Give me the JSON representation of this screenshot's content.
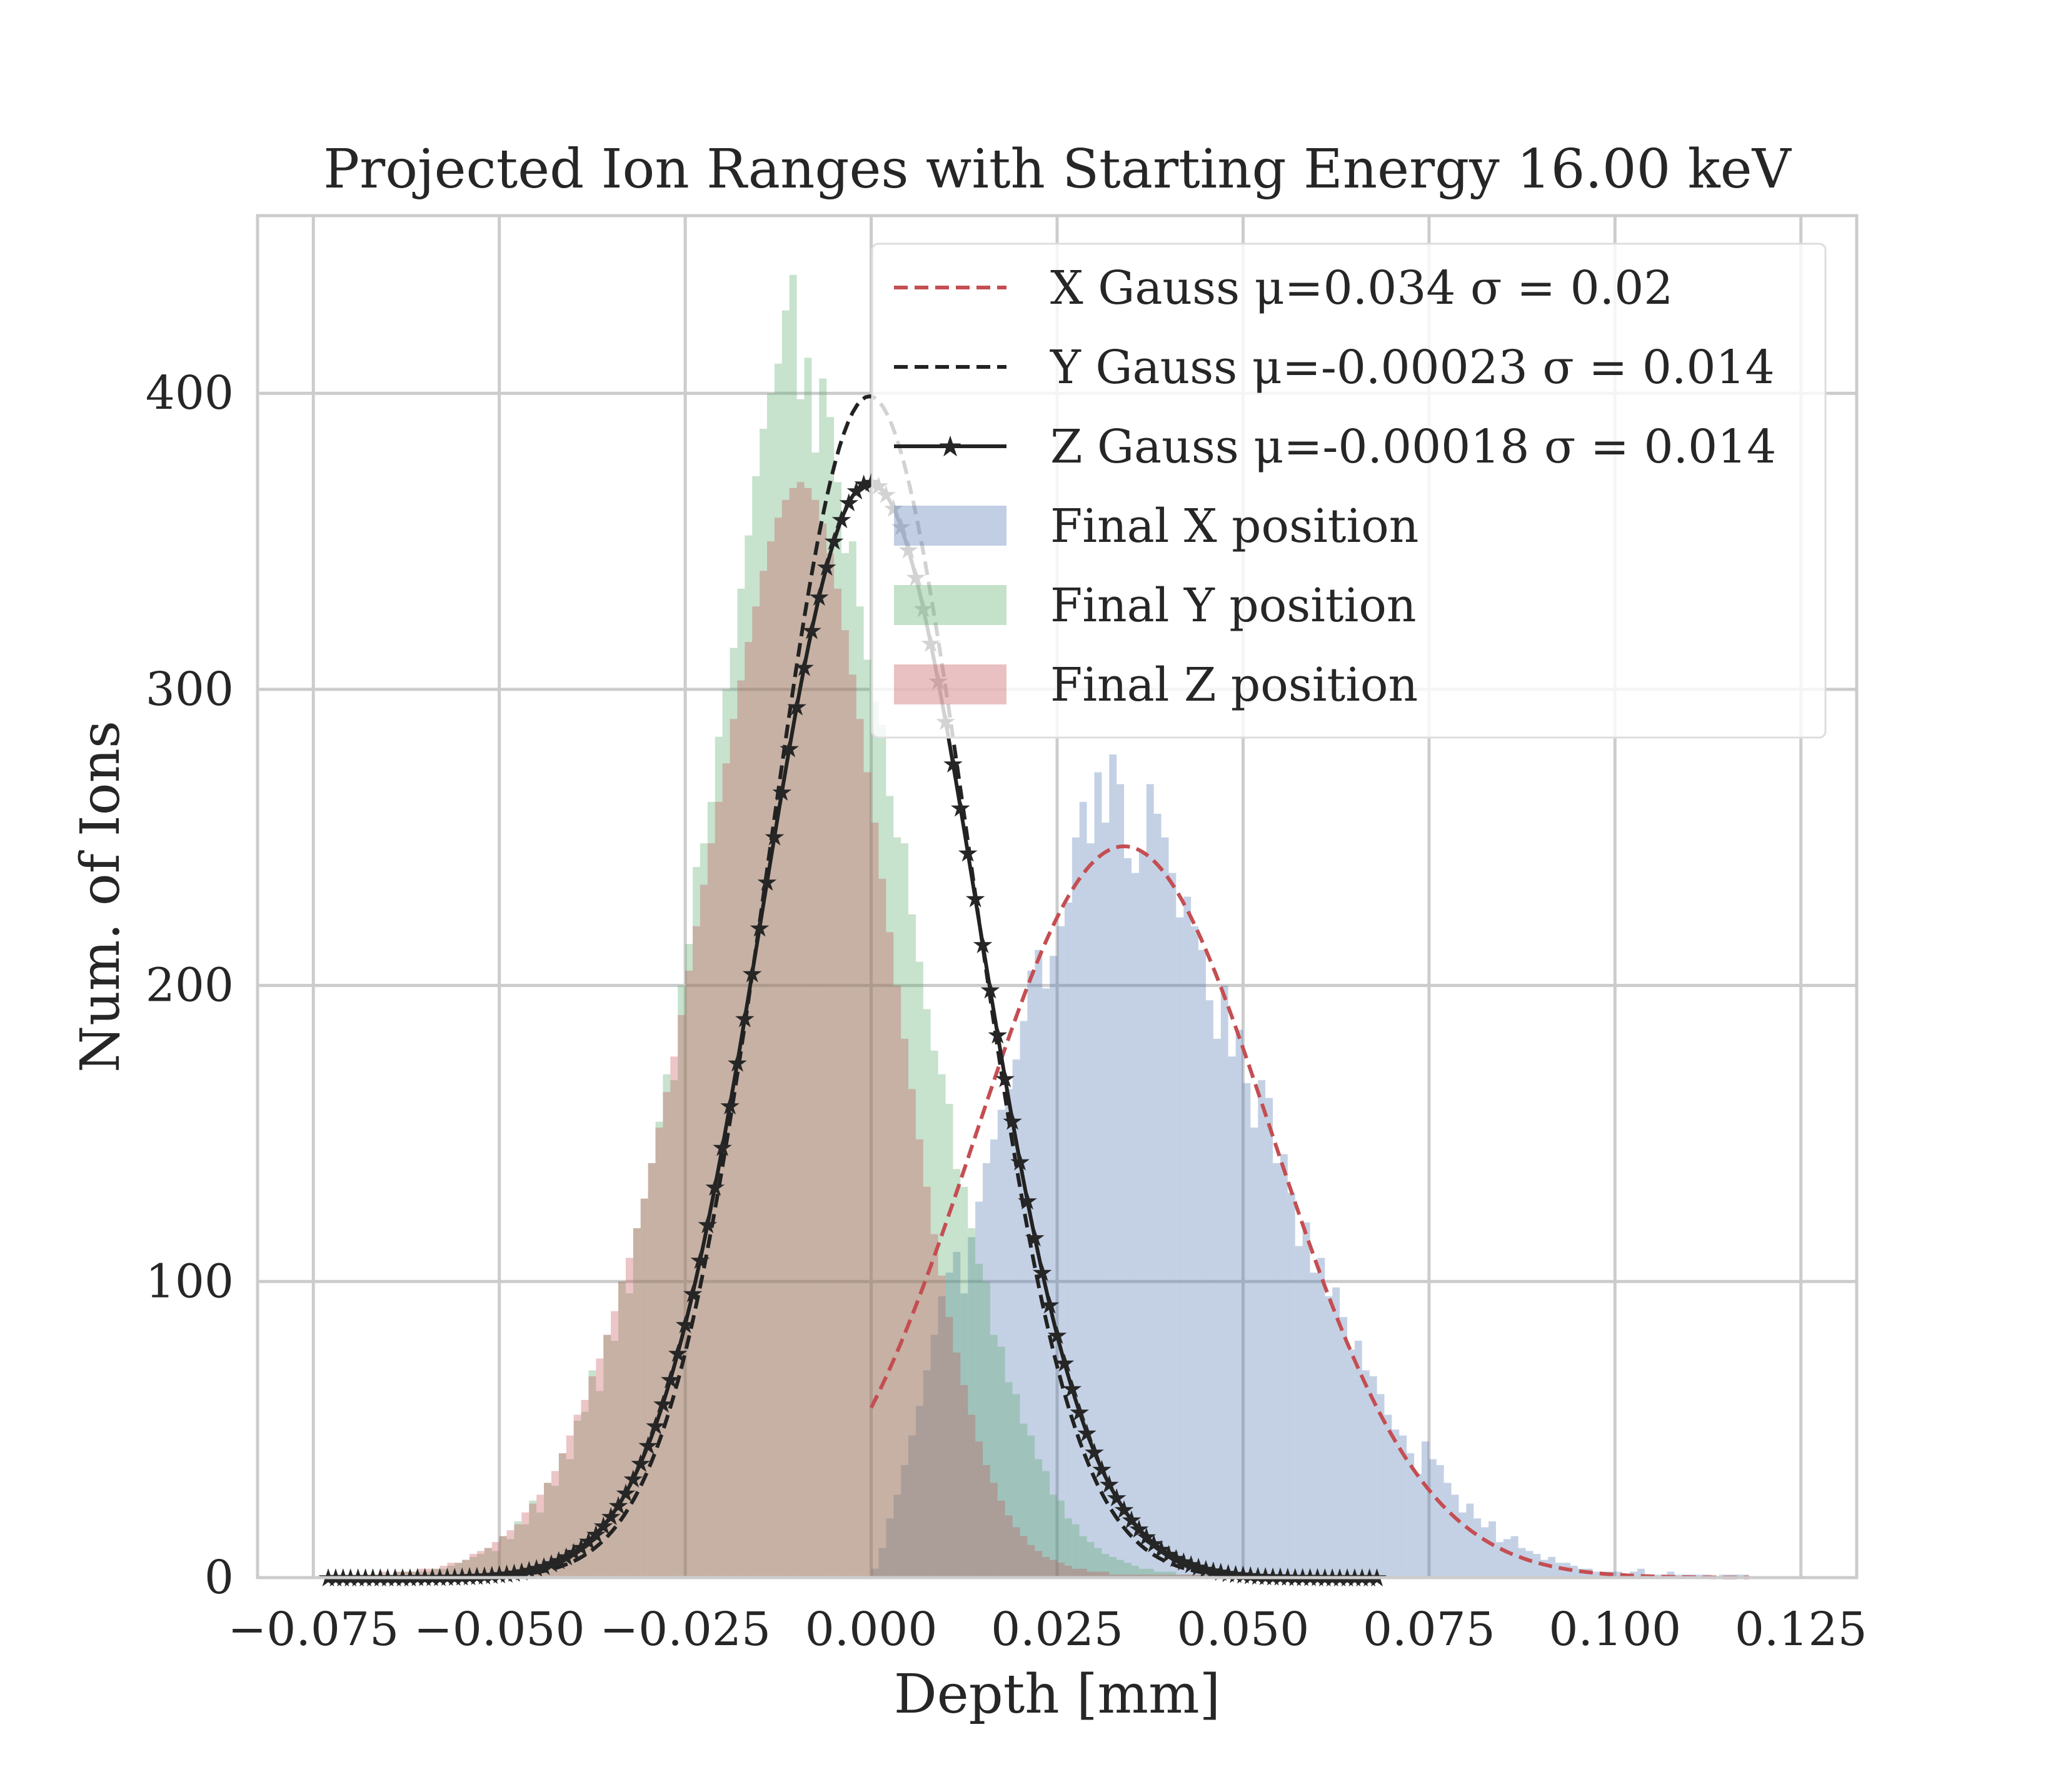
{
  "chart_data": {
    "type": "histogram",
    "title": "Projected Ion Ranges with Starting Energy 16.00 keV",
    "xlabel": "Depth [mm]",
    "ylabel": "Num. of Ions",
    "xlim": [
      -0.0825,
      0.1325
    ],
    "ylim": [
      0,
      460
    ],
    "x_ticks": [
      -0.075,
      -0.05,
      -0.025,
      0.0,
      0.025,
      0.05,
      0.075,
      0.1,
      0.125
    ],
    "x_tick_labels": [
      "−0.075",
      "−0.050",
      "−0.025",
      "0.000",
      "0.025",
      "0.050",
      "0.075",
      "0.100",
      "0.125"
    ],
    "y_ticks": [
      0,
      100,
      200,
      300,
      400
    ],
    "y_tick_labels": [
      "0",
      "100",
      "200",
      "300",
      "400"
    ],
    "grid": true,
    "legend_position": "upper-right",
    "colors": {
      "x_hist": "#4c72b0",
      "y_hist": "#55a868",
      "z_hist": "#c44e52",
      "x_fit": "#c44e52",
      "y_fit": "#222222",
      "z_fit": "#222222",
      "grid": "#cccccc"
    },
    "fits": [
      {
        "name": "X Gauss μ=0.034 σ = 0.02",
        "mu": 0.034,
        "sigma": 0.0199,
        "amplitude": 247,
        "x_range": [
          0.0,
          0.118
        ],
        "style": "dashed",
        "color": "#c44e52"
      },
      {
        "name": "Y Gauss μ=-0.00023 σ = 0.014",
        "mu": -0.00023,
        "sigma": 0.0136,
        "amplitude": 399,
        "x_range": [
          -0.073,
          0.068
        ],
        "style": "dashed",
        "color": "#222222"
      },
      {
        "name": "Z Gauss μ=-0.00018 σ = 0.014",
        "mu": -0.00018,
        "sigma": 0.0145,
        "amplitude": 370,
        "x_range": [
          -0.073,
          0.068
        ],
        "style": "solid-star",
        "color": "#222222"
      }
    ],
    "series": [
      {
        "name": "Final X position",
        "color": "#4c72b0",
        "bin_start": 0.0,
        "bin_width": 0.001,
        "values": [
          3,
          10,
          20,
          28,
          38,
          48,
          58,
          70,
          82,
          95,
          103,
          110,
          96,
          115,
          127,
          140,
          148,
          158,
          165,
          175,
          188,
          205,
          212,
          199,
          210,
          220,
          228,
          250,
          262,
          248,
          272,
          255,
          278,
          268,
          243,
          238,
          245,
          268,
          258,
          250,
          238,
          223,
          230,
          220,
          212,
          195,
          182,
          200,
          176,
          185,
          167,
          152,
          168,
          162,
          140,
          143,
          130,
          112,
          120,
          103,
          108,
          95,
          98,
          88,
          77,
          80,
          70,
          68,
          62,
          55,
          50,
          48,
          42,
          35,
          46,
          40,
          38,
          32,
          28,
          22,
          25,
          20,
          17,
          19,
          12,
          13,
          14,
          10,
          9,
          8,
          6,
          7,
          5,
          5,
          4,
          3,
          3,
          2,
          2,
          2,
          2,
          1,
          2,
          3,
          1,
          1,
          1,
          2,
          1,
          1,
          1,
          1,
          1,
          0,
          1,
          1,
          1,
          1
        ]
      },
      {
        "name": "Final Y position",
        "color": "#55a868",
        "bin_start": -0.073,
        "bin_width": 0.001,
        "values": [
          1,
          1,
          1,
          1,
          1,
          1,
          1,
          1,
          1,
          2,
          2,
          2,
          2,
          2,
          3,
          3,
          4,
          5,
          6,
          7,
          8,
          10,
          9,
          14,
          13,
          19,
          18,
          26,
          22,
          32,
          31,
          42,
          40,
          53,
          56,
          70,
          63,
          82,
          80,
          100,
          96,
          118,
          128,
          140,
          154,
          170,
          168,
          200,
          214,
          240,
          248,
          262,
          284,
          300,
          314,
          334,
          352,
          372,
          388,
          400,
          410,
          428,
          440,
          398,
          412,
          380,
          405,
          392,
          370,
          346,
          350,
          328,
          310,
          296,
          288,
          264,
          250,
          248,
          224,
          208,
          192,
          178,
          170,
          160,
          138,
          132,
          118,
          106,
          100,
          82,
          78,
          66,
          62,
          52,
          48,
          40,
          36,
          28,
          26,
          20,
          18,
          14,
          12,
          10,
          8,
          7,
          6,
          5,
          4,
          3,
          3,
          2,
          2,
          2,
          1,
          1,
          1,
          1,
          1,
          1,
          1,
          1,
          1,
          1,
          1,
          1,
          1,
          1,
          1,
          1,
          1,
          1,
          1,
          1,
          1,
          1,
          1,
          1,
          1,
          1,
          1
        ]
      },
      {
        "name": "Final Z position",
        "color": "#c44e52",
        "bin_start": -0.073,
        "bin_width": 0.001,
        "values": [
          1,
          1,
          1,
          1,
          1,
          1,
          1,
          2,
          1,
          2,
          2,
          2,
          3,
          3,
          3,
          4,
          5,
          5,
          6,
          8,
          9,
          10,
          12,
          14,
          16,
          18,
          22,
          25,
          28,
          32,
          36,
          42,
          48,
          55,
          60,
          68,
          74,
          82,
          90,
          100,
          108,
          118,
          128,
          140,
          152,
          164,
          176,
          190,
          205,
          220,
          234,
          248,
          262,
          275,
          290,
          303,
          316,
          328,
          340,
          350,
          358,
          364,
          368,
          370,
          368,
          364,
          356,
          346,
          334,
          320,
          305,
          290,
          272,
          255,
          236,
          218,
          200,
          182,
          165,
          148,
          132,
          116,
          102,
          88,
          76,
          65,
          55,
          46,
          38,
          32,
          26,
          21,
          17,
          14,
          11,
          9,
          7,
          6,
          5,
          4,
          3,
          3,
          2,
          2,
          2,
          1,
          1,
          1,
          1,
          1,
          1,
          1,
          1,
          1,
          1,
          1,
          1,
          1,
          1,
          1,
          1,
          1,
          1,
          1,
          1,
          1,
          1,
          1,
          1,
          1,
          1,
          1,
          1,
          1,
          1,
          1,
          1,
          1,
          1,
          1,
          1
        ]
      }
    ],
    "legend": [
      {
        "label": "X Gauss μ=0.034 σ = 0.02",
        "kind": "dashed",
        "color": "#c44e52"
      },
      {
        "label": "Y Gauss μ=-0.00023 σ = 0.014",
        "kind": "dashed",
        "color": "#222222"
      },
      {
        "label": "Z Gauss μ=-0.00018 σ = 0.014",
        "kind": "solid-star",
        "color": "#222222"
      },
      {
        "label": "Final X position",
        "kind": "patch",
        "color": "#4c72b0"
      },
      {
        "label": "Final Y position",
        "kind": "patch",
        "color": "#55a868"
      },
      {
        "label": "Final Z position",
        "kind": "patch",
        "color": "#c44e52"
      }
    ]
  }
}
